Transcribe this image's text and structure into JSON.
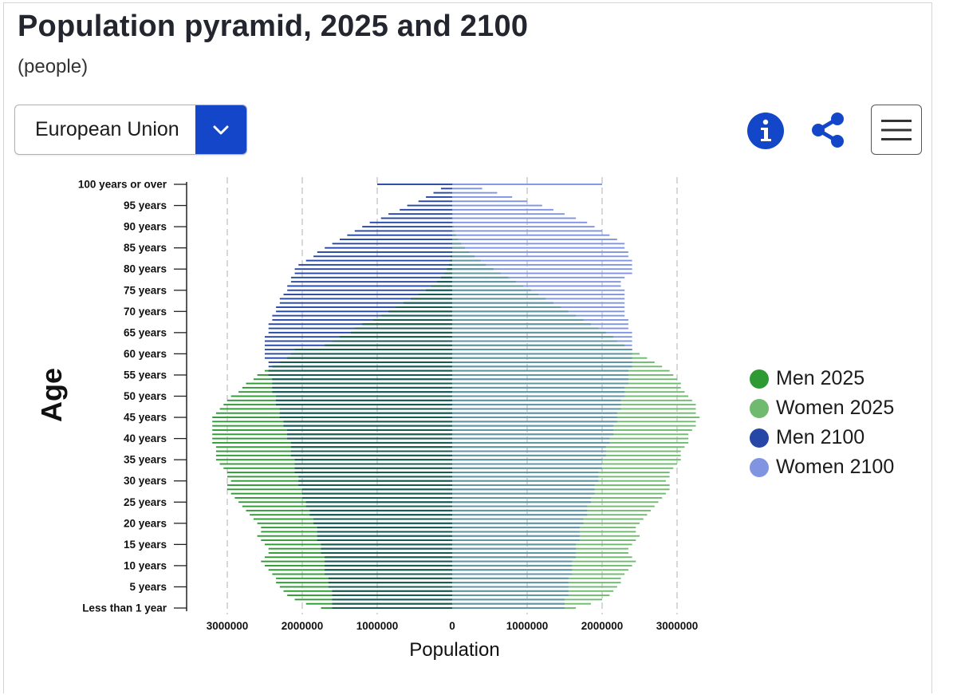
{
  "header": {
    "title": "Population pyramid, 2025 and 2100",
    "subtitle": "(people)"
  },
  "controls": {
    "region_select": {
      "value": "European Union",
      "icon": "chevron-down-icon"
    },
    "info_icon": "info-icon",
    "share_icon": "share-icon",
    "menu_icon": "hamburger-menu-icon"
  },
  "colors": {
    "accent": "#1346c8",
    "men_2025": "#2e9a33",
    "women_2025": "#6fba6f",
    "men_2100": "#2747a6",
    "women_2100": "#7f95e2",
    "overlap_men": "#145a4d",
    "overlap_women": "#5f96a2"
  },
  "chart_data": {
    "type": "bar",
    "orientation": "horizontal",
    "layout": "population-pyramid",
    "title": "Population pyramid, 2025 and 2100",
    "subtitle": "(people)",
    "xlabel": "Population",
    "ylabel": "Age",
    "xlim": [
      -3300000,
      3300000
    ],
    "x_ticks": [
      -3000000,
      -2000000,
      -1000000,
      0,
      1000000,
      2000000,
      3000000
    ],
    "x_tick_labels": [
      "3000000",
      "2000000",
      "1000000",
      "0",
      "1000000",
      "2000000",
      "3000000"
    ],
    "y_tick_labels": [
      "Less than 1 year",
      "5 years",
      "10 years",
      "15 years",
      "20 years",
      "25 years",
      "30 years",
      "35 years",
      "40 years",
      "45 years",
      "50 years",
      "55 years",
      "60 years",
      "65 years",
      "70 years",
      "75 years",
      "80 years",
      "85 years",
      "90 years",
      "95 years",
      "100 years or over"
    ],
    "grid": "vertical-dashed",
    "legend_position": "right",
    "series": [
      {
        "name": "Men 2025",
        "side": "left",
        "values": [
          1750000,
          1950000,
          2100000,
          2200000,
          2250000,
          2300000,
          2350000,
          2350000,
          2400000,
          2450000,
          2500000,
          2550000,
          2500000,
          2450000,
          2450000,
          2500000,
          2550000,
          2600000,
          2550000,
          2550000,
          2600000,
          2650000,
          2700000,
          2750000,
          2800000,
          2850000,
          2900000,
          2950000,
          3000000,
          3000000,
          2950000,
          3000000,
          3000000,
          3050000,
          3100000,
          3150000,
          3150000,
          3150000,
          3150000,
          3200000,
          3200000,
          3200000,
          3200000,
          3200000,
          3200000,
          3200000,
          3150000,
          3100000,
          3050000,
          3000000,
          2950000,
          2850000,
          2800000,
          2750000,
          2650000,
          2600000,
          2500000,
          2400000,
          2300000,
          2200000,
          2150000,
          2100000,
          1700000,
          1600000,
          1500000,
          1350000,
          1300000,
          1200000,
          1050000,
          950000,
          850000,
          750000,
          650000,
          550000,
          450000,
          350000,
          280000,
          200000,
          150000,
          100000,
          70000,
          45000,
          30000,
          20000,
          10000,
          5000,
          3000,
          2000,
          1000,
          500,
          300,
          200,
          100,
          50,
          30,
          20,
          10,
          5,
          2,
          1,
          1000
        ]
      },
      {
        "name": "Women 2025",
        "side": "right",
        "values": [
          1650000,
          1850000,
          2000000,
          2100000,
          2150000,
          2200000,
          2250000,
          2250000,
          2300000,
          2350000,
          2400000,
          2450000,
          2400000,
          2350000,
          2350000,
          2400000,
          2450000,
          2500000,
          2450000,
          2450000,
          2500000,
          2550000,
          2600000,
          2650000,
          2700000,
          2750000,
          2800000,
          2850000,
          2900000,
          2900000,
          2850000,
          2900000,
          2900000,
          2950000,
          3000000,
          3050000,
          3050000,
          3050000,
          3100000,
          3150000,
          3150000,
          3150000,
          3200000,
          3250000,
          3250000,
          3300000,
          3250000,
          3250000,
          3250000,
          3200000,
          3150000,
          3100000,
          3050000,
          3050000,
          3000000,
          2950000,
          2900000,
          2800000,
          2700000,
          2600000,
          2500000,
          2400000,
          2300000,
          2200000,
          2150000,
          2050000,
          1950000,
          1850000,
          1750000,
          1650000,
          1550000,
          1450000,
          1350000,
          1250000,
          1150000,
          1050000,
          950000,
          850000,
          750000,
          650000,
          550000,
          450000,
          380000,
          300000,
          230000,
          170000,
          120000,
          80000,
          50000,
          30000,
          20000,
          12000,
          8000,
          5000,
          3000,
          2000,
          1000,
          500,
          200,
          100,
          5000
        ]
      },
      {
        "name": "Men 2100",
        "side": "left",
        "values": [
          1600000,
          1600000,
          1600000,
          1600000,
          1600000,
          1650000,
          1650000,
          1650000,
          1700000,
          1700000,
          1700000,
          1700000,
          1700000,
          1750000,
          1750000,
          1750000,
          1800000,
          1800000,
          1800000,
          1800000,
          1850000,
          1850000,
          1900000,
          1900000,
          1950000,
          1950000,
          2000000,
          2000000,
          2000000,
          2050000,
          2050000,
          2050000,
          2100000,
          2100000,
          2100000,
          2100000,
          2150000,
          2150000,
          2150000,
          2150000,
          2200000,
          2200000,
          2200000,
          2250000,
          2250000,
          2300000,
          2300000,
          2300000,
          2350000,
          2350000,
          2350000,
          2400000,
          2400000,
          2400000,
          2400000,
          2450000,
          2450000,
          2450000,
          2450000,
          2500000,
          2500000,
          2500000,
          2500000,
          2500000,
          2500000,
          2450000,
          2450000,
          2450000,
          2400000,
          2400000,
          2350000,
          2350000,
          2300000,
          2300000,
          2250000,
          2200000,
          2200000,
          2150000,
          2150000,
          2100000,
          2100000,
          2050000,
          1950000,
          1850000,
          1800000,
          1700000,
          1600000,
          1500000,
          1400000,
          1300000,
          1200000,
          1100000,
          950000,
          850000,
          700000,
          600000,
          450000,
          350000,
          250000,
          150000,
          1000000
        ]
      },
      {
        "name": "Women 2100",
        "side": "right",
        "values": [
          1500000,
          1500000,
          1500000,
          1550000,
          1550000,
          1550000,
          1550000,
          1550000,
          1600000,
          1600000,
          1600000,
          1600000,
          1650000,
          1650000,
          1650000,
          1650000,
          1700000,
          1700000,
          1700000,
          1700000,
          1750000,
          1750000,
          1800000,
          1800000,
          1800000,
          1850000,
          1850000,
          1900000,
          1900000,
          1900000,
          1950000,
          1950000,
          1950000,
          2000000,
          2000000,
          2000000,
          2050000,
          2050000,
          2050000,
          2100000,
          2100000,
          2150000,
          2150000,
          2150000,
          2200000,
          2200000,
          2200000,
          2250000,
          2250000,
          2250000,
          2300000,
          2300000,
          2300000,
          2350000,
          2350000,
          2350000,
          2350000,
          2400000,
          2400000,
          2400000,
          2400000,
          2400000,
          2400000,
          2400000,
          2400000,
          2400000,
          2350000,
          2350000,
          2350000,
          2300000,
          2300000,
          2300000,
          2300000,
          2300000,
          2300000,
          2300000,
          2250000,
          2250000,
          2300000,
          2400000,
          2400000,
          2400000,
          2400000,
          2350000,
          2350000,
          2300000,
          2300000,
          2200000,
          2100000,
          2000000,
          1900000,
          1800000,
          1650000,
          1500000,
          1350000,
          1200000,
          1000000,
          800000,
          600000,
          400000,
          2000000
        ]
      }
    ]
  },
  "legend": [
    {
      "name": "Men 2025",
      "color": "#2e9a33"
    },
    {
      "name": "Women 2025",
      "color": "#6fba6f"
    },
    {
      "name": "Men 2100",
      "color": "#2747a6"
    },
    {
      "name": "Women 2100",
      "color": "#7f95e2"
    }
  ]
}
